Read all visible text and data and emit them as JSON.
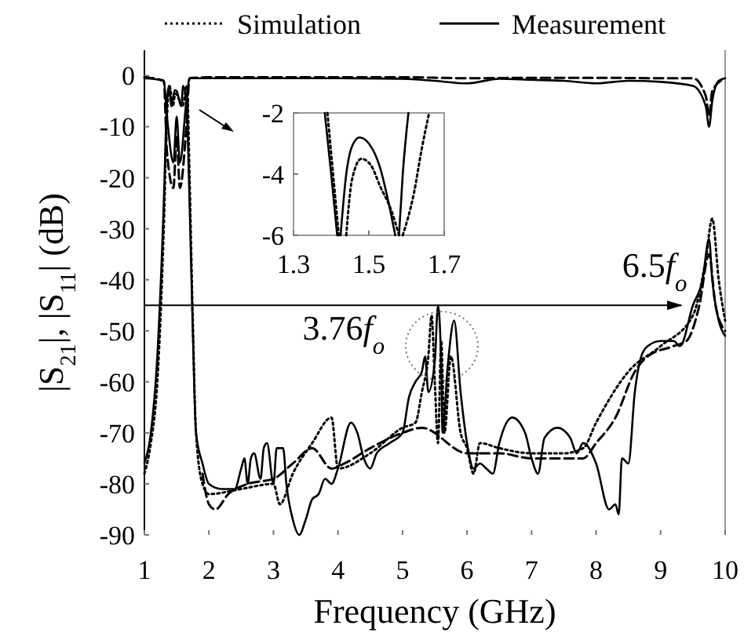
{
  "chart_data": [
    {
      "type": "line",
      "xlabel": "Frequency (GHz)",
      "ylabel": "|S$_{21}$|, |S$_{11}$| (dB)",
      "xlim": [
        1,
        10
      ],
      "ylim": [
        -90,
        5
      ],
      "xticks": [
        1,
        2,
        3,
        4,
        5,
        6,
        7,
        8,
        9,
        10
      ],
      "yticks": [
        0,
        -10,
        -20,
        -30,
        -40,
        -50,
        -60,
        -70,
        -80,
        -90
      ],
      "grid": false,
      "legend": "top",
      "annotations": [
        {
          "text": "3.76f$_{o}$",
          "x": 5.55,
          "y": -45
        },
        {
          "text": "6.5f$_{o}$",
          "x": 9.75,
          "y": -32
        }
      ],
      "ref_lines": [
        {
          "axis": "y",
          "value": -45
        }
      ],
      "series": [
        {
          "color": "#000000",
          "line_style": "dashed",
          "x": [
            1,
            1.3,
            1.35,
            1.45,
            1.5,
            1.55,
            1.65,
            1.7,
            2,
            3,
            4,
            5,
            6,
            7,
            8,
            9,
            9.5,
            9.7,
            9.75,
            9.8,
            10
          ],
          "values": [
            -0.3,
            -1,
            -15,
            -22,
            -12,
            -22,
            -10,
            -0.5,
            -0.3,
            -0.3,
            -0.3,
            -0.3,
            -0.5,
            -0.4,
            -0.4,
            -0.5,
            -0.5,
            -4,
            -8,
            -3,
            -0.5
          ]
        },
        {
          "color": "#000000",
          "line_style": "solid",
          "x": [
            1,
            1.3,
            1.35,
            1.45,
            1.5,
            1.55,
            1.65,
            1.7,
            2,
            3,
            4,
            5,
            5.5,
            6,
            6.5,
            7,
            7.5,
            8,
            8.5,
            9,
            9.5,
            9.7,
            9.75,
            9.8,
            9.9,
            10
          ],
          "values": [
            -0.5,
            -1,
            -8,
            -17,
            -8,
            -17,
            -5,
            -0.5,
            -0.5,
            -0.5,
            -0.5,
            -0.6,
            -1,
            -1.5,
            -0.6,
            -0.8,
            -1,
            -1.5,
            -1,
            -1.2,
            -2,
            -6,
            -10,
            -5,
            -1,
            -0.5
          ]
        },
        {
          "name": "Simulation",
          "color": "#000000",
          "line_style": "dotted",
          "x": [
            1,
            1.1,
            1.2,
            1.3,
            1.35,
            1.39,
            1.44,
            1.48,
            1.53,
            1.59,
            1.66,
            1.7,
            1.75,
            1.8,
            1.9,
            2,
            2.5,
            3,
            3.1,
            3.3,
            3.6,
            3.9,
            4,
            4.5,
            5,
            5.2,
            5.3,
            5.4,
            5.45,
            5.5,
            5.55,
            5.6,
            5.65,
            5.75,
            5.9,
            6,
            6.1,
            6.2,
            6.5,
            7,
            7.5,
            7.8,
            8,
            8.5,
            9,
            9.5,
            9.7,
            9.8,
            9.9,
            10
          ],
          "values": [
            -78,
            -72,
            -60,
            -30,
            -8,
            -2,
            -6,
            -3.5,
            -4.4,
            -6,
            -2,
            -20,
            -48,
            -70,
            -80,
            -82,
            -81,
            -80,
            -84,
            -78,
            -72,
            -67,
            -77,
            -74,
            -69,
            -68,
            -62,
            -55,
            -47,
            -60,
            -72,
            -52,
            -70,
            -55,
            -70,
            -73,
            -78,
            -72,
            -73,
            -74,
            -74,
            -73,
            -68,
            -58,
            -53,
            -47,
            -36,
            -28,
            -40,
            -48
          ]
        },
        {
          "name": "Measurement",
          "color": "#000000",
          "line_style": "solid",
          "x": [
            1,
            1.1,
            1.2,
            1.3,
            1.35,
            1.38,
            1.42,
            1.47,
            1.5,
            1.57,
            1.6,
            1.65,
            1.7,
            1.75,
            1.8,
            1.9,
            2,
            2.2,
            2.4,
            2.5,
            2.55,
            2.6,
            2.65,
            2.7,
            2.8,
            2.85,
            2.9,
            3,
            3.05,
            3.15,
            3.2,
            3.3,
            3.4,
            3.5,
            3.6,
            3.7,
            3.8,
            3.9,
            4,
            4.2,
            4.3,
            4.4,
            4.5,
            4.6,
            4.8,
            5,
            5.1,
            5.2,
            5.3,
            5.35,
            5.4,
            5.5,
            5.55,
            5.6,
            5.62,
            5.7,
            5.8,
            5.9,
            6,
            6.1,
            6.2,
            6.3,
            6.4,
            6.5,
            6.7,
            6.9,
            7,
            7.1,
            7.2,
            7.4,
            7.6,
            7.7,
            7.8,
            8,
            8.2,
            8.3,
            8.35,
            8.4,
            8.5,
            8.6,
            8.7,
            8.8,
            9,
            9.2,
            9.3,
            9.5,
            9.65,
            9.75,
            9.8,
            9.9,
            10
          ],
          "values": [
            -76,
            -70,
            -55,
            -25,
            -5,
            -2,
            -6,
            -2.8,
            -3,
            -6,
            -2,
            -5,
            -25,
            -50,
            -70,
            -76,
            -80,
            -81,
            -81,
            -77,
            -75,
            -80,
            -75,
            -74,
            -79,
            -73,
            -72,
            -80,
            -73,
            -73,
            -80,
            -87,
            -90,
            -87,
            -83,
            -82,
            -79,
            -80,
            -77,
            -68,
            -70,
            -75,
            -77,
            -74,
            -72,
            -70,
            -63,
            -60,
            -58,
            -55,
            -62,
            -56,
            -45,
            -57,
            -70,
            -57,
            -48,
            -62,
            -72,
            -77,
            -76,
            -77,
            -78,
            -72,
            -67,
            -70,
            -75,
            -78,
            -71,
            -69,
            -71,
            -74,
            -72,
            -76,
            -85,
            -84,
            -86,
            -75,
            -76,
            -62,
            -55,
            -53,
            -52,
            -52,
            -53,
            -45,
            -40,
            -32,
            -40,
            -48,
            -51
          ]
        },
        {
          "color": "#000000",
          "line_style": "dashed",
          "x": [
            1.9,
            2,
            2.1,
            2.3,
            2.6,
            3,
            3.3,
            3.6,
            3.9,
            4.1,
            4.5,
            5,
            5.3,
            6,
            6.5,
            7,
            7.5,
            7.8,
            8,
            8.3,
            8.6,
            8.8,
            9.2,
            9.4,
            9.6,
            9.75,
            9.85,
            10
          ],
          "values": [
            -78,
            -84,
            -85,
            -82,
            -80,
            -79,
            -76,
            -73,
            -77,
            -76,
            -73,
            -70,
            -69,
            -74,
            -74,
            -75,
            -75,
            -75,
            -72,
            -67,
            -58,
            -55,
            -53,
            -52,
            -45,
            -35,
            -45,
            -50
          ]
        }
      ]
    },
    {
      "type": "line",
      "xlim": [
        1.3,
        1.7
      ],
      "ylim": [
        -6,
        -2
      ],
      "xticks": [
        1.3,
        1.5,
        1.7
      ],
      "yticks": [
        -2,
        -4,
        -6
      ],
      "series": [
        {
          "color": "#000000",
          "line_style": "solid",
          "x": [
            1.383,
            1.4,
            1.416
          ],
          "values": [
            -2,
            -4,
            -6
          ]
        },
        {
          "color": "#000000",
          "line_style": "solid",
          "x": [
            1.425,
            1.44,
            1.455,
            1.475,
            1.5,
            1.53,
            1.55,
            1.57
          ],
          "values": [
            -6,
            -4,
            -3.1,
            -2.8,
            -3,
            -3.8,
            -4.8,
            -6
          ]
        },
        {
          "color": "#000000",
          "line_style": "solid",
          "x": [
            1.58,
            1.59,
            1.605
          ],
          "values": [
            -6,
            -4,
            -2
          ]
        },
        {
          "color": "#000000",
          "line_style": "dotted",
          "x": [
            1.39,
            1.405,
            1.42
          ],
          "values": [
            -2,
            -4,
            -6
          ]
        },
        {
          "color": "#000000",
          "line_style": "dotted",
          "x": [
            1.44,
            1.455,
            1.48,
            1.505,
            1.53,
            1.56,
            1.58
          ],
          "values": [
            -6,
            -4.2,
            -3.5,
            -3.7,
            -4.4,
            -5.2,
            -6
          ]
        },
        {
          "color": "#000000",
          "line_style": "dotted",
          "x": [
            1.59,
            1.62,
            1.64,
            1.66
          ],
          "values": [
            -6,
            -4.6,
            -3.2,
            -2
          ]
        }
      ]
    }
  ]
}
